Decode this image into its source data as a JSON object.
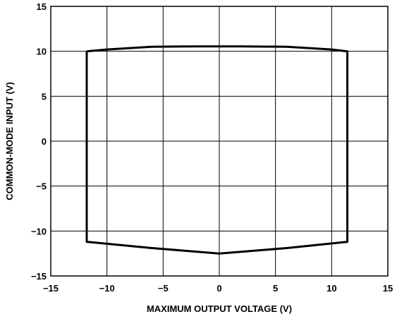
{
  "chart_data": {
    "type": "line",
    "xlabel": "MAXIMUM OUTPUT VOLTAGE (V)",
    "ylabel": "COMMON-MODE INPUT (V)",
    "xlim": [
      -15,
      15
    ],
    "ylim": [
      -15,
      15
    ],
    "xticks": [
      -15,
      -10,
      -5,
      0,
      5,
      10,
      15
    ],
    "yticks": [
      -15,
      -10,
      -5,
      0,
      5,
      10,
      15
    ],
    "xtick_labels": [
      "−15",
      "−10",
      "−5",
      "0",
      "5",
      "10",
      "15"
    ],
    "ytick_labels": [
      "−15",
      "−10",
      "−5",
      "0",
      "5",
      "10",
      "15"
    ],
    "grid": true,
    "series": [
      {
        "x": [
          -11.8,
          -10,
          -6,
          -2,
          0,
          2,
          6,
          10,
          11.4,
          11.4,
          6,
          0,
          -6,
          -11.8,
          -11.8
        ],
        "y": [
          10.0,
          10.2,
          10.5,
          10.55,
          10.55,
          10.55,
          10.5,
          10.2,
          10.0,
          -11.2,
          -11.9,
          -12.5,
          -11.9,
          -11.2,
          10.0
        ]
      }
    ]
  }
}
